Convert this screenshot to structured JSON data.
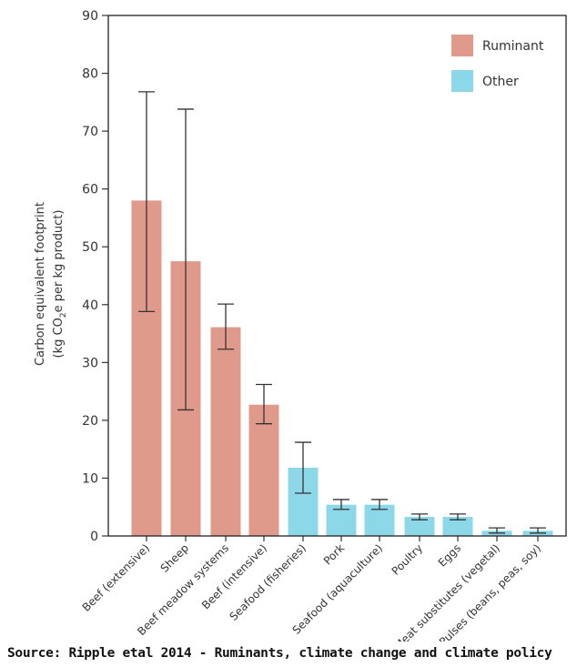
{
  "chart_data": {
    "type": "bar",
    "title": "",
    "xlabel": "",
    "ylabel_line1": "Carbon equivalent footprint",
    "ylabel_line2_parts": [
      "(kg CO",
      "2",
      "e per kg product)"
    ],
    "ylim": [
      0,
      90
    ],
    "yticks": [
      0,
      10,
      20,
      30,
      40,
      50,
      60,
      70,
      80,
      90
    ],
    "grid": false,
    "legend_placement": "top-right",
    "legend": [
      {
        "name": "Ruminant",
        "color": "#e09a8b"
      },
      {
        "name": "Other",
        "color": "#8cd8e8"
      }
    ],
    "categories": [
      "Beef (extensive)",
      "Sheep",
      "Beef meadow systems",
      "Beef (intensive)",
      "Seafood (fisheries)",
      "Pork",
      "Seafood (aquaculture)",
      "Poultry",
      "Eggs",
      "Meat substitutes (vegetal)",
      "Pulses (beans, peas, soy)"
    ],
    "groups": [
      "Ruminant",
      "Ruminant",
      "Ruminant",
      "Ruminant",
      "Other",
      "Other",
      "Other",
      "Other",
      "Other",
      "Other",
      "Other"
    ],
    "values": [
      58,
      47.5,
      36.1,
      22.7,
      11.8,
      5.4,
      5.4,
      3.3,
      3.3,
      0.9,
      0.9
    ],
    "error_low": [
      38.8,
      21.8,
      32.3,
      19.4,
      7.4,
      4.6,
      4.6,
      2.8,
      2.8,
      0.5,
      0.5
    ],
    "error_high": [
      76.8,
      73.8,
      40.1,
      26.2,
      16.2,
      6.3,
      6.3,
      3.8,
      3.8,
      1.4,
      1.4
    ]
  },
  "source": "Source: Ripple etal 2014 - Ruminants, climate change and climate policy"
}
